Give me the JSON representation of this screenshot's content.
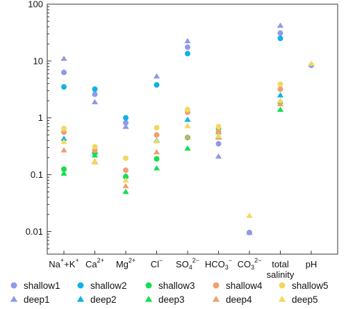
{
  "chart_data": {
    "type": "scatter",
    "title": "",
    "xlabel": "",
    "ylabel": "",
    "yscale": "log",
    "ylim": [
      0.004,
      100
    ],
    "y_ticks": [
      {
        "value": 100,
        "label": "100"
      },
      {
        "value": 10,
        "label": "10"
      },
      {
        "value": 1,
        "label": "1"
      },
      {
        "value": 0.1,
        "label": "0.1"
      },
      {
        "value": 0.01,
        "label": "0.01"
      }
    ],
    "categories": [
      {
        "base": "Na",
        "sup": "+",
        "mid": "+K",
        "sup2": "+"
      },
      {
        "base": "Ca",
        "sup": "2+",
        "mid": "",
        "sup2": ""
      },
      {
        "base": "Mg",
        "sup": "2+",
        "mid": "",
        "sup2": ""
      },
      {
        "base": "Cl",
        "sup": "−",
        "mid": "",
        "sup2": ""
      },
      {
        "base": "SO",
        "sub": "4",
        "sup": "2−",
        "mid": "",
        "sup2": ""
      },
      {
        "base": "HCO",
        "sub": "3",
        "sup": "−",
        "mid": "",
        "sup2": ""
      },
      {
        "base": "CO",
        "sub": "3",
        "sup": "2−",
        "mid": "",
        "sup2": ""
      },
      {
        "base": "total",
        "line2": "salinity",
        "mid": "",
        "sup2": ""
      },
      {
        "base": "pH",
        "mid": "",
        "sup2": ""
      }
    ],
    "grid": false,
    "legend_position": "bottom",
    "series": [
      {
        "name": "shallow1",
        "marker": "circle",
        "color": "#8f9ae8",
        "values": [
          6.3,
          2.6,
          0.82,
          null,
          17.5,
          0.35,
          0.0096,
          31,
          8.4
        ]
      },
      {
        "name": "deep1",
        "marker": "triangle",
        "color": "#8f9ae8",
        "values": [
          11,
          1.9,
          0.7,
          5.4,
          22.5,
          0.21,
          0.0096,
          42,
          8.8
        ]
      },
      {
        "name": "shallow2",
        "marker": "circle",
        "color": "#0fb2e8",
        "values": [
          3.5,
          3.2,
          1.0,
          3.8,
          13.5,
          null,
          null,
          25,
          null
        ]
      },
      {
        "name": "deep2",
        "marker": "triangle",
        "color": "#0fb2e8",
        "values": [
          0.43,
          0.26,
          0.095,
          0.4,
          0.93,
          0.47,
          null,
          2.5,
          null
        ]
      },
      {
        "name": "shallow3",
        "marker": "circle",
        "color": "#12e050",
        "values": [
          0.125,
          0.24,
          0.092,
          0.19,
          0.45,
          0.65,
          null,
          1.85,
          null
        ]
      },
      {
        "name": "deep3",
        "marker": "triangle",
        "color": "#12e050",
        "values": [
          0.105,
          0.22,
          0.05,
          0.13,
          0.29,
          0.56,
          null,
          1.4,
          null
        ]
      },
      {
        "name": "shallow4",
        "marker": "circle",
        "color": "#f0a070",
        "values": [
          0.56,
          0.27,
          0.12,
          0.5,
          1.25,
          0.57,
          null,
          3.2,
          null
        ]
      },
      {
        "name": "deep4",
        "marker": "triangle",
        "color": "#f0a070",
        "values": [
          0.27,
          0.17,
          0.063,
          0.25,
          0.46,
          0.45,
          null,
          1.75,
          null
        ]
      },
      {
        "name": "shallow5",
        "marker": "circle",
        "color": "#f2d860",
        "values": [
          0.65,
          0.31,
          0.195,
          0.67,
          1.4,
          0.7,
          null,
          3.9,
          null
        ]
      },
      {
        "name": "deep5",
        "marker": "triangle",
        "color": "#f2d860",
        "values": [
          0.38,
          0.165,
          0.08,
          0.39,
          0.72,
          0.48,
          0.019,
          2.0,
          9.0
        ]
      }
    ]
  }
}
